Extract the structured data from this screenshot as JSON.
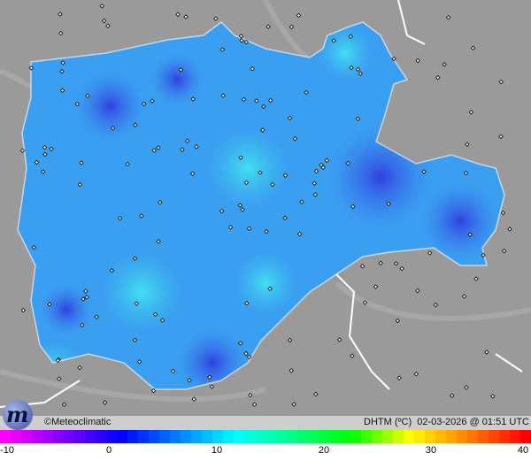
{
  "copyright": "©Meteoclimatic",
  "info": {
    "variable": "DHTM (ºC)",
    "datetime": "02-03-2026 @ 01:51 UTC"
  },
  "colorbar": {
    "min": -10,
    "max": 40,
    "tick_labels": [
      "-10",
      "0",
      "10",
      "20",
      "30",
      "40"
    ],
    "stops": [
      "#ff00ff",
      "#8000ff",
      "#0000ff",
      "#0080ff",
      "#00ffff",
      "#00ff80",
      "#00ff00",
      "#ffff00",
      "#ff8000",
      "#ff0000"
    ]
  },
  "colors": {
    "background": "#9a9a9a",
    "region_base": "#3a9ff0",
    "region_cold": "#3a55e0",
    "region_warm": "#40d8f0",
    "border": "#ffffff"
  }
}
